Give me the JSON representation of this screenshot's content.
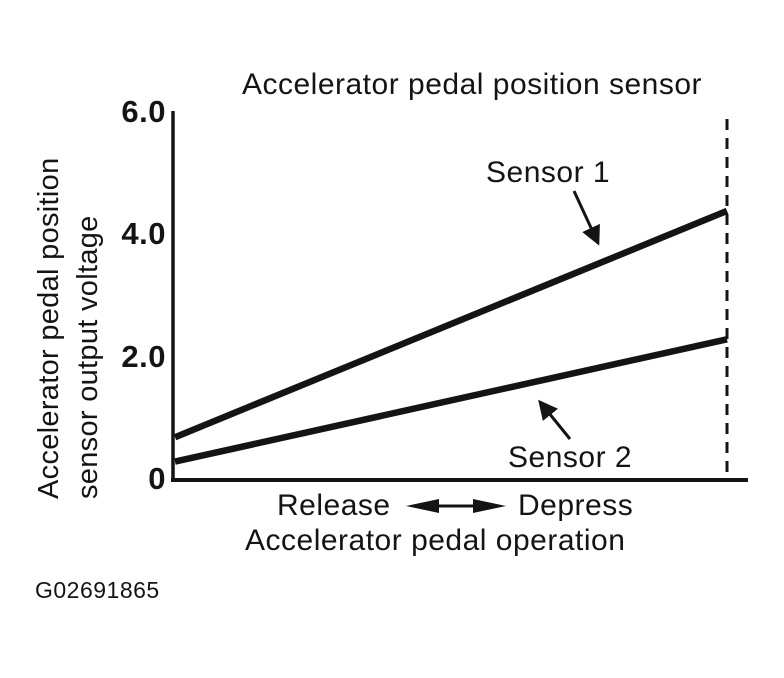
{
  "figure": {
    "code": "G02691865"
  },
  "chart_data": {
    "type": "line",
    "title": "Accelerator pedal position sensor",
    "ylabel": "Accelerator pedal position sensor output voltage",
    "ylabel_lines": [
      "Accelerator pedal position",
      "sensor output voltage"
    ],
    "xlabel": "Accelerator pedal operation",
    "x_direction_labels": {
      "left": "Release",
      "right": "Depress"
    },
    "x": [
      "Release",
      "Depress"
    ],
    "ylim": [
      0,
      6
    ],
    "yticks": [
      {
        "value": 6.0,
        "label": "6.0"
      },
      {
        "value": 4.0,
        "label": "4.0"
      },
      {
        "value": 2.0,
        "label": "2.0"
      },
      {
        "value": 0.0,
        "label": "0"
      }
    ],
    "series": [
      {
        "name": "Sensor 1",
        "values": [
          0.7,
          4.4
        ]
      },
      {
        "name": "Sensor 2",
        "values": [
          0.3,
          2.3
        ]
      }
    ],
    "units": "V",
    "grid": false,
    "legend": "inline annotations with arrows",
    "right_boundary": "dashed vertical line at full depress position"
  }
}
